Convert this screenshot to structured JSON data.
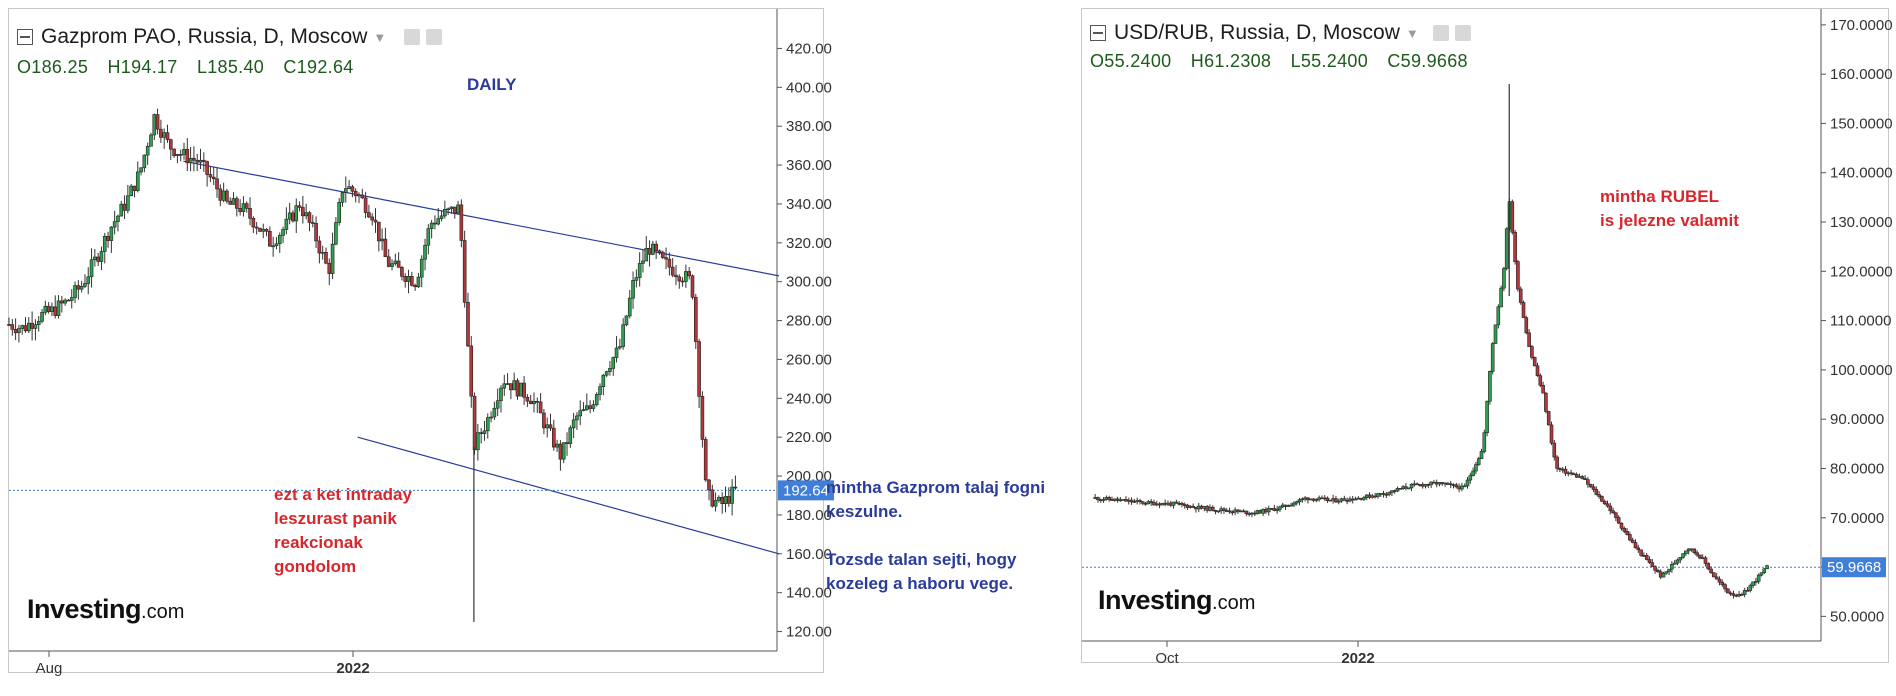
{
  "left_chart": {
    "title": "Gazprom PAO, Russia, D, Moscow",
    "ohlc": {
      "o": "O186.25",
      "h": "H194.17",
      "l": "L185.40",
      "c": "C192.64"
    },
    "label_daily": "DAILY",
    "last_price_label": "192.64",
    "annotation": "ezt a ket intraday\nleszurast panik\nreakcionak\ngondolom",
    "logo": "Investing",
    "logo_suffix": ".com"
  },
  "right_chart": {
    "title": "USD/RUB, Russia, D, Moscow",
    "ohlc": {
      "o": "O55.2400",
      "h": "H61.2308",
      "l": "L55.2400",
      "c": "C59.9668"
    },
    "last_price_label": "59.9668",
    "annotation": "mintha RUBEL\nis jelezne valamit",
    "logo": "Investing",
    "logo_suffix": ".com"
  },
  "side_notes": {
    "note1": "mintha Gazprom talaj fogni\nkeszulne.",
    "note2": "Tozsde talan sejti, hogy\nkozeleg a haboru vege."
  },
  "colors": {
    "up": "#2e9e4f",
    "down": "#b0373a",
    "annotation_red": "#d8262a",
    "annotation_blue": "#2b3b9c",
    "price_tag": "#3f7fd9"
  },
  "chart_data": [
    {
      "type": "candlestick",
      "title": "Gazprom PAO, Russia, D, Moscow",
      "ylim": [
        110,
        430
      ],
      "y_ticks": [
        "420.00",
        "400.00",
        "380.00",
        "360.00",
        "340.00",
        "320.00",
        "300.00",
        "280.00",
        "260.00",
        "240.00",
        "220.00",
        "200.00",
        "180.00",
        "160.00",
        "140.00",
        "120.00"
      ],
      "x_ticks": [
        "Aug",
        "2022"
      ],
      "last_price": 192.64,
      "series": [
        {
          "x": [
            "2021-07-15",
            "2021-07-22",
            "2021-07-29",
            "2021-08-05",
            "2021-08-12",
            "2021-08-19",
            "2021-08-26",
            "2021-09-02",
            "2021-09-09",
            "2021-09-16",
            "2021-09-23",
            "2021-09-30",
            "2021-10-07",
            "2021-10-14",
            "2021-10-21",
            "2021-10-28",
            "2021-11-04",
            "2021-11-11",
            "2021-11-18",
            "2021-11-25",
            "2021-12-02",
            "2021-12-09",
            "2021-12-16",
            "2021-12-23",
            "2021-12-30",
            "2022-01-06",
            "2022-01-13",
            "2022-01-20",
            "2022-01-27",
            "2022-02-03",
            "2022-02-10",
            "2022-02-17",
            "2022-02-24",
            "2022-03-03",
            "2022-03-10",
            "2022-03-17",
            "2022-03-24",
            "2022-03-31",
            "2022-04-07",
            "2022-04-14",
            "2022-04-21",
            "2022-04-28",
            "2022-05-05",
            "2022-05-12",
            "2022-05-19",
            "2022-05-26",
            "2022-06-02",
            "2022-06-09",
            "2022-06-16",
            "2022-06-23",
            "2022-06-30"
          ],
          "y": [
            278,
            276,
            282,
            285,
            290,
            298,
            312,
            328,
            340,
            356,
            385,
            370,
            365,
            362,
            352,
            340,
            338,
            330,
            320,
            328,
            340,
            325,
            305,
            350,
            345,
            335,
            310,
            305,
            300,
            330,
            335,
            338,
            215,
            230,
            250,
            245,
            240,
            225,
            210,
            230,
            235,
            255,
            265,
            300,
            318,
            310,
            305,
            300,
            190,
            185,
            192.64
          ]
        }
      ],
      "trend_lines": [
        {
          "from": [
            "2021-10-07",
            362
          ],
          "to": [
            "2022-07-21",
            303
          ]
        },
        {
          "from": [
            "2021-12-30",
            220
          ],
          "to": [
            "2022-07-21",
            160
          ]
        }
      ]
    },
    {
      "type": "candlestick",
      "title": "USD/RUB, Russia, D, Moscow",
      "ylim": [
        45,
        172
      ],
      "y_ticks": [
        "170.0000",
        "160.0000",
        "150.0000",
        "140.0000",
        "130.0000",
        "120.0000",
        "110.0000",
        "100.0000",
        "90.0000",
        "80.0000",
        "70.0000",
        "60.0000",
        "50.0000"
      ],
      "x_ticks": [
        "Oct",
        "2022"
      ],
      "last_price": 59.9668,
      "series": [
        {
          "x": [
            "2021-08-02",
            "2021-08-16",
            "2021-08-30",
            "2021-09-13",
            "2021-09-27",
            "2021-10-11",
            "2021-10-25",
            "2021-11-08",
            "2021-11-22",
            "2021-12-06",
            "2021-12-20",
            "2022-01-03",
            "2022-01-17",
            "2022-01-31",
            "2022-02-14",
            "2022-02-24",
            "2022-03-01",
            "2022-03-07",
            "2022-03-10",
            "2022-03-14",
            "2022-03-21",
            "2022-03-28",
            "2022-04-04",
            "2022-04-18",
            "2022-05-02",
            "2022-05-16",
            "2022-05-30",
            "2022-06-13",
            "2022-06-20",
            "2022-06-27",
            "2022-07-04",
            "2022-07-11",
            "2022-07-18",
            "2022-07-25"
          ],
          "y": [
            74,
            73.5,
            73,
            72.8,
            72,
            71.5,
            71,
            72,
            74,
            73.5,
            74,
            75,
            76.5,
            77,
            76,
            84,
            105,
            120,
            135,
            118,
            104,
            95,
            80,
            78,
            72,
            64,
            58,
            64,
            62,
            58,
            55,
            54,
            57,
            59.9668
          ]
        }
      ]
    }
  ]
}
